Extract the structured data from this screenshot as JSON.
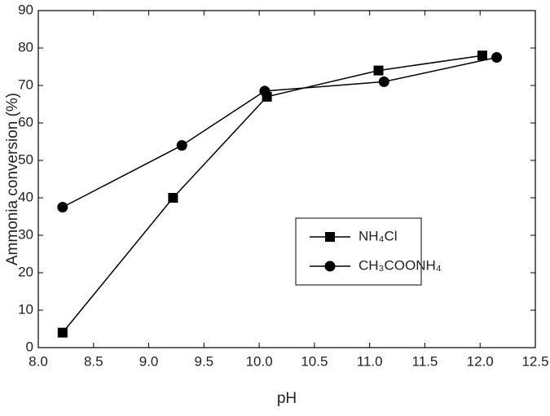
{
  "chart_data": {
    "type": "line",
    "x_label": "pH",
    "y_label": "Ammonia conversion (%)",
    "xlim": [
      8.0,
      12.5
    ],
    "xticks": [
      {
        "value": 8,
        "label": "8.0"
      },
      8.5,
      {
        "value": 9,
        "label": "9.0"
      },
      9.5,
      {
        "value": 10,
        "label": "10.0"
      },
      10.5,
      {
        "value": 11,
        "label": "11.0"
      },
      11.5,
      {
        "value": 12,
        "label": "12.0"
      },
      12.5
    ],
    "ylim": [
      0,
      90
    ],
    "yticks": [
      0,
      10,
      20,
      30,
      40,
      50,
      60,
      70,
      80,
      90
    ],
    "legend": "right",
    "series": [
      {
        "name": "NH₄Cl",
        "color": "#000000",
        "marker": "square",
        "x": [
          8.22,
          9.22,
          10.07,
          11.08,
          12.02
        ],
        "values": [
          4,
          40,
          67,
          74,
          78
        ]
      },
      {
        "name": "CH₃COONH₄",
        "color": "#000000",
        "marker": "circle",
        "x": [
          8.22,
          9.3,
          10.05,
          11.13,
          12.15
        ],
        "values": [
          37.5,
          54,
          68.5,
          71,
          77.5
        ]
      }
    ]
  }
}
